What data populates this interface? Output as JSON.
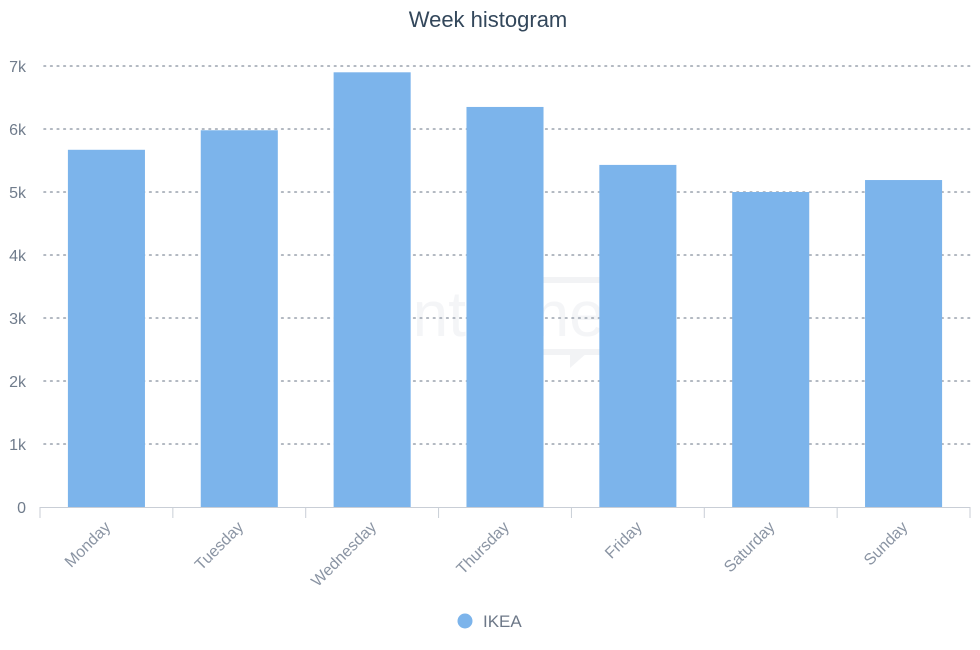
{
  "chart_data": {
    "type": "bar",
    "title": "Week histogram",
    "categories": [
      "Monday",
      "Tuesday",
      "Wednesday",
      "Thursday",
      "Friday",
      "Saturday",
      "Sunday"
    ],
    "series": [
      {
        "name": "IKEA",
        "color": "#7cb4eb",
        "values": [
          5670,
          5980,
          6900,
          6350,
          5430,
          5000,
          5190
        ]
      }
    ],
    "ylim": [
      0,
      7000
    ],
    "yticks": [
      0,
      1000,
      2000,
      3000,
      4000,
      5000,
      6000,
      7000
    ],
    "ytick_labels": [
      "0",
      "1k",
      "2k",
      "3k",
      "4k",
      "5k",
      "6k",
      "7k"
    ],
    "grid": true,
    "legend": "bottom-center"
  },
  "watermark": {
    "text": "senti one"
  }
}
